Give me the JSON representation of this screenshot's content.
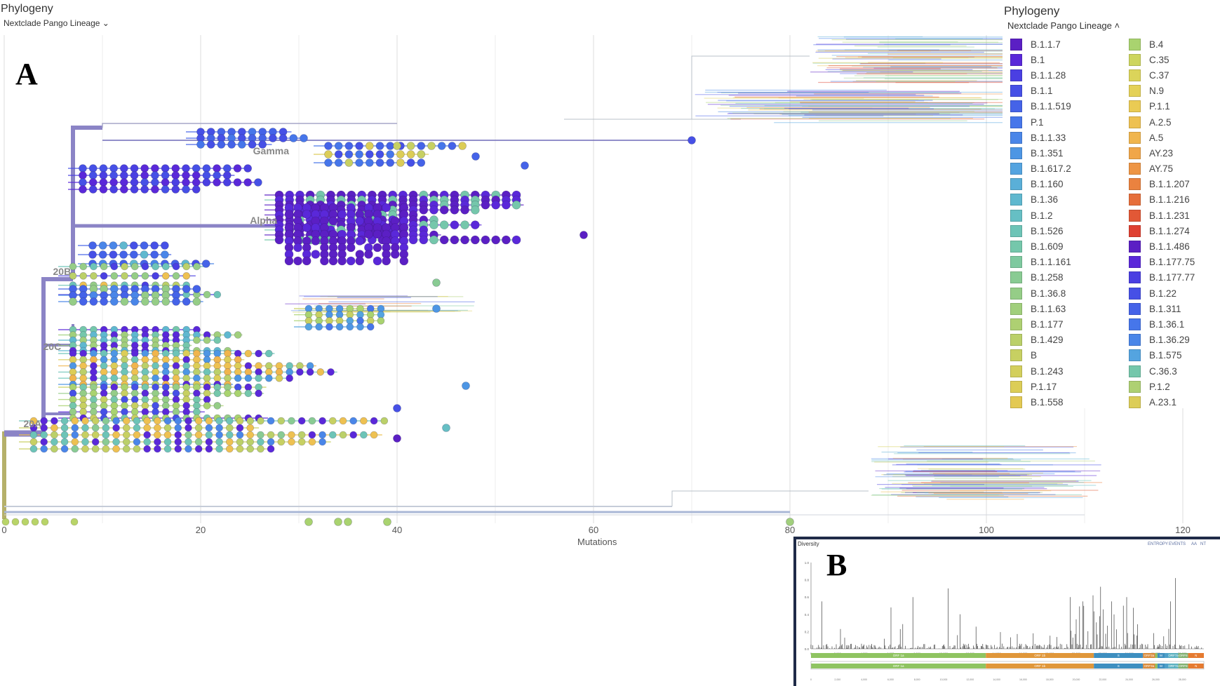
{
  "tree_panel": {
    "title": "Phylogeny",
    "color_by": "Nextclade Pango Lineage",
    "panel_label": "A",
    "x_axis_title": "Mutations",
    "x_ticks": [
      "0",
      "20",
      "40",
      "60",
      "80",
      "100",
      "120"
    ],
    "clade_labels": [
      "Gamma",
      "Alpha",
      "20B",
      "20C",
      "20A"
    ]
  },
  "legend": {
    "title": "Phylogeny",
    "color_by": "Nextclade Pango Lineage",
    "left_column": [
      {
        "label": "B.1.1.7",
        "color": "#5b1fc4"
      },
      {
        "label": "B.1",
        "color": "#5a28d9"
      },
      {
        "label": "B.1.1.28",
        "color": "#4a3fe2"
      },
      {
        "label": "B.1.1",
        "color": "#4650e6"
      },
      {
        "label": "B.1.1.519",
        "color": "#4563e8"
      },
      {
        "label": "P.1",
        "color": "#4676ea"
      },
      {
        "label": "B.1.1.33",
        "color": "#4a86e8"
      },
      {
        "label": "B.1.351",
        "color": "#4d96e4"
      },
      {
        "label": "B.1.617.2",
        "color": "#54a4e0"
      },
      {
        "label": "B.1.160",
        "color": "#5aafd8"
      },
      {
        "label": "B.1.36",
        "color": "#5fb8cf"
      },
      {
        "label": "B.1.2",
        "color": "#66bfc4"
      },
      {
        "label": "B.1.526",
        "color": "#6dc4b7"
      },
      {
        "label": "B.1.609",
        "color": "#75c7ab"
      },
      {
        "label": "B.1.1.161",
        "color": "#7ec99f"
      },
      {
        "label": "B.1.258",
        "color": "#89cb93"
      },
      {
        "label": "B.1.36.8",
        "color": "#95cd87"
      },
      {
        "label": "B.1.1.63",
        "color": "#a1cf7c"
      },
      {
        "label": "B.1.177",
        "color": "#aed072"
      },
      {
        "label": "B.1.429",
        "color": "#bbd069"
      },
      {
        "label": "B",
        "color": "#c7d062"
      },
      {
        "label": "B.1.243",
        "color": "#d3cf5c"
      },
      {
        "label": "P.1.17",
        "color": "#dccd57"
      },
      {
        "label": "B.1.558",
        "color": "#e3c953"
      }
    ],
    "right_column": [
      {
        "label": "B.4",
        "color": "#a9d36f"
      },
      {
        "label": "C.35",
        "color": "#cdd55e"
      },
      {
        "label": "C.37",
        "color": "#dbd45a"
      },
      {
        "label": "N.9",
        "color": "#e4d157"
      },
      {
        "label": "P.1.1",
        "color": "#eacb54"
      },
      {
        "label": "A.2.5",
        "color": "#eec151"
      },
      {
        "label": "A.5",
        "color": "#f0b54d"
      },
      {
        "label": "AY.23",
        "color": "#f0a649"
      },
      {
        "label": "AY.75",
        "color": "#ee9544"
      },
      {
        "label": "B.1.1.207",
        "color": "#ea823f"
      },
      {
        "label": "B.1.1.216",
        "color": "#e66e3a"
      },
      {
        "label": "B.1.1.231",
        "color": "#e25836"
      },
      {
        "label": "B.1.1.274",
        "color": "#df4031"
      },
      {
        "label": "B.1.1.486",
        "color": "#5b1fc4"
      },
      {
        "label": "B.1.177.75",
        "color": "#5a28d9"
      },
      {
        "label": "B.1.177.77",
        "color": "#4a3fe2"
      },
      {
        "label": "B.1.22",
        "color": "#4650e6"
      },
      {
        "label": "B.1.311",
        "color": "#4563e8"
      },
      {
        "label": "B.1.36.1",
        "color": "#4676ea"
      },
      {
        "label": "B.1.36.29",
        "color": "#4a86e8"
      },
      {
        "label": "B.1.575",
        "color": "#54a4e0"
      },
      {
        "label": "C.36.3",
        "color": "#75c7ab"
      },
      {
        "label": "P.1.2",
        "color": "#aed072"
      },
      {
        "label": "A.23.1",
        "color": "#dccd57"
      }
    ]
  },
  "diversity_panel": {
    "panel_label": "B",
    "title": "Diversity",
    "toggles": [
      "ENTROPY",
      "EVENTS",
      "AA",
      "NT"
    ],
    "y_ticks": [
      "1.0",
      "0.8",
      "0.6",
      "0.4",
      "0.2",
      "0.0"
    ],
    "x_ticks": [
      "0",
      "2,000",
      "4,000",
      "6,000",
      "8,000",
      "10,000",
      "12,000",
      "14,000",
      "16,000",
      "18,000",
      "20,000",
      "22,000",
      "24,000",
      "26,000",
      "28,000"
    ],
    "genes": [
      {
        "label": "ORF 1a",
        "color": "#8fc461"
      },
      {
        "label": "ORF 1b",
        "color": "#e0973a"
      },
      {
        "label": "S",
        "color": "#3e8fc0"
      },
      {
        "label": "ORF3a",
        "color": "#d98a3a"
      },
      {
        "label": "E",
        "color": "#90c060"
      },
      {
        "label": "M",
        "color": "#3f8fbf"
      },
      {
        "label": "ORF6",
        "color": "#4fa0c8"
      },
      {
        "label": "ORF7a",
        "color": "#5ab0c0"
      },
      {
        "label": "ORF8",
        "color": "#80b070"
      },
      {
        "label": "N",
        "color": "#e57a30"
      }
    ]
  }
}
